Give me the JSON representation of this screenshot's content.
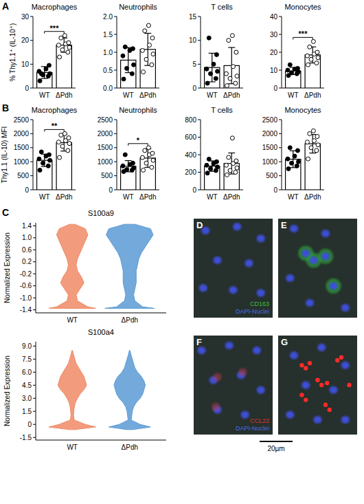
{
  "chart_data": [
    {
      "type": "bar",
      "title": "Macrophages",
      "y_label": "% Thy1.1⁺ (IL-10⁺)",
      "categories": [
        "WT",
        "ΔPdh"
      ],
      "values": [
        6.5,
        18
      ],
      "errors": [
        2.5,
        3
      ],
      "points": [
        [
          3,
          5,
          5.5,
          6,
          7,
          8,
          9.5,
          6
        ],
        [
          13,
          15,
          16,
          17,
          18,
          18.5,
          19,
          21,
          22
        ]
      ],
      "colors": [
        "#ffffff",
        "#ffffff"
      ],
      "ylim": [
        0,
        30
      ],
      "yticks": [
        0,
        10,
        20,
        30
      ],
      "significance": "***"
    },
    {
      "type": "bar",
      "title": "Neutrophils",
      "categories": [
        "WT",
        "ΔPdh"
      ],
      "values": [
        0.78,
        1.08
      ],
      "errors": [
        0.35,
        0.45
      ],
      "points": [
        [
          0.25,
          0.4,
          0.55,
          0.65,
          0.9,
          1.05,
          1.1,
          1.15
        ],
        [
          0.45,
          0.65,
          0.8,
          0.95,
          1.05,
          1.2,
          1.4,
          1.6,
          1.75
        ]
      ],
      "colors": [
        "#ffffff",
        "#ffffff"
      ],
      "ylim": [
        0,
        2
      ],
      "yticks": [
        {
          "value": 0,
          "label": "0.0"
        },
        0.5,
        {
          "value": 1,
          "label": "1.0"
        },
        1.5,
        {
          "value": 2,
          "label": "2.0"
        }
      ]
    },
    {
      "type": "bar",
      "title": "T cells",
      "categories": [
        "WT",
        "ΔPdh"
      ],
      "values": [
        4.3,
        4.7
      ],
      "errors": [
        3,
        3.8
      ],
      "points": [
        [
          1,
          2,
          3,
          3.5,
          4,
          5,
          7,
          10.5
        ],
        [
          0.5,
          1,
          2,
          2.5,
          3,
          4.5,
          7.5,
          10,
          11
        ]
      ],
      "colors": [
        "#ffffff",
        "#ffffff"
      ],
      "ylim": [
        0,
        15
      ],
      "yticks": [
        0,
        5,
        10,
        15
      ]
    },
    {
      "type": "bar",
      "title": "Monocytes",
      "categories": [
        "WT",
        "ΔPdh"
      ],
      "values": [
        9.5,
        18.5
      ],
      "errors": [
        2,
        4.5
      ],
      "points": [
        [
          7,
          8,
          8.5,
          9,
          10,
          10.5,
          11,
          13
        ],
        [
          13,
          14,
          16,
          17,
          18,
          19,
          20,
          23,
          26
        ]
      ],
      "colors": [
        "#ffffff",
        "#ffffff"
      ],
      "ylim": [
        0,
        40
      ],
      "yticks": [
        0,
        10,
        20,
        30,
        40
      ],
      "significance": "***"
    },
    {
      "type": "bar",
      "title": "Macrophages",
      "y_label": "Thy1.1 (IL-10) MFI",
      "categories": [
        "WT",
        "ΔPdh"
      ],
      "values": [
        1050,
        1680
      ],
      "errors": [
        220,
        300
      ],
      "points": [
        [
          700,
          850,
          950,
          1050,
          1100,
          1200,
          1250,
          1350
        ],
        [
          1150,
          1400,
          1550,
          1650,
          1700,
          1750,
          1850,
          1950,
          2000
        ]
      ],
      "colors": [
        "#ffffff",
        "#ffffff"
      ],
      "ylim": [
        0,
        2500
      ],
      "yticks": [
        0,
        500,
        1000,
        1500,
        2000,
        2500
      ],
      "significance": "**"
    },
    {
      "type": "bar",
      "title": "Neutrophils",
      "categories": [
        "WT",
        "ΔPdh"
      ],
      "values": [
        840,
        1130
      ],
      "errors": [
        200,
        330
      ],
      "points": [
        [
          650,
          700,
          720,
          780,
          850,
          900,
          950,
          1250
        ],
        [
          700,
          800,
          950,
          1050,
          1150,
          1250,
          1300,
          1400,
          1500
        ]
      ],
      "colors": [
        "#ffffff",
        "#ffffff"
      ],
      "ylim": [
        0,
        2500
      ],
      "yticks": [
        0,
        500,
        1000,
        1500,
        2000,
        2500
      ],
      "significance": "*"
    },
    {
      "type": "bar",
      "title": "T cells",
      "categories": [
        "WT",
        "ΔPdh"
      ],
      "values": [
        270,
        300
      ],
      "errors": [
        60,
        120
      ],
      "points": [
        [
          190,
          220,
          240,
          260,
          280,
          300,
          320,
          350
        ],
        [
          170,
          200,
          220,
          250,
          280,
          300,
          330,
          370,
          590
        ]
      ],
      "colors": [
        "#ffffff",
        "#ffffff"
      ],
      "ylim": [
        0,
        800
      ],
      "yticks": [
        0,
        200,
        400,
        600,
        800
      ]
    },
    {
      "type": "bar",
      "title": "Monocytes",
      "categories": [
        "WT",
        "ΔPdh"
      ],
      "values": [
        1090,
        1640
      ],
      "errors": [
        300,
        330
      ],
      "points": [
        [
          750,
          850,
          950,
          1000,
          1100,
          1200,
          1400,
          1500
        ],
        [
          1100,
          1400,
          1500,
          1600,
          1700,
          1750,
          1900,
          2000,
          2100
        ]
      ],
      "colors": [
        "#ffffff",
        "#ffffff"
      ],
      "ylim": [
        0,
        2500
      ],
      "yticks": [
        0,
        500,
        1000,
        1500,
        2000,
        2500
      ]
    },
    {
      "type": "violin",
      "title": "S100a9",
      "y_label": "Normalized Expression",
      "categories": [
        "WT",
        "ΔPdh"
      ],
      "colors": [
        "#f08a66",
        "#5b9bd5"
      ],
      "y": [
        -1.35,
        -1.3,
        -1.1,
        -0.9,
        -0.7,
        -0.5,
        -0.3,
        -0.1,
        0.1,
        0.3,
        0.5,
        0.7,
        0.9,
        1.1,
        1.3,
        1.45
      ],
      "density": [
        [
          0.9,
          0.6,
          0.2,
          0.15,
          0.3,
          0.45,
          0.35,
          0.2,
          0.15,
          0.2,
          0.3,
          0.4,
          0.5,
          0.6,
          0.5,
          0.1
        ],
        [
          0.95,
          0.5,
          0.2,
          0.15,
          0.2,
          0.25,
          0.25,
          0.25,
          0.3,
          0.35,
          0.45,
          0.6,
          0.75,
          0.9,
          0.8,
          0.2
        ]
      ],
      "ylim": [
        -1.5,
        1.5
      ],
      "yticks": [
        -1.4,
        {
          "value": -1,
          "label": "-1.0"
        },
        -0.6,
        -0.2,
        0.2,
        0.6,
        {
          "value": 1,
          "label": "1.0"
        },
        1.4
      ]
    },
    {
      "type": "violin",
      "title": "S100a4",
      "y_label": "Normalized Expression",
      "categories": [
        "WT",
        "ΔPdh"
      ],
      "colors": [
        "#f08a66",
        "#5b9bd5"
      ],
      "y": [
        -0.6,
        -0.3,
        0,
        0.5,
        1,
        1.5,
        2,
        2.5,
        3,
        3.5,
        4,
        4.5,
        5,
        5.5,
        6,
        6.5,
        7,
        7.5,
        8,
        8.5
      ],
      "density": [
        [
          0.1,
          0.9,
          0.5,
          0.08,
          0.05,
          0.06,
          0.08,
          0.12,
          0.2,
          0.3,
          0.45,
          0.55,
          0.5,
          0.45,
          0.35,
          0.25,
          0.15,
          0.1,
          0.05,
          0.01
        ],
        [
          0.1,
          0.8,
          0.4,
          0.06,
          0.08,
          0.1,
          0.15,
          0.25,
          0.4,
          0.5,
          0.55,
          0.6,
          0.55,
          0.45,
          0.3,
          0.2,
          0.15,
          0.1,
          0.05,
          0.01
        ]
      ],
      "ylim": [
        -1.8,
        9.5
      ],
      "yticks": [
        -1.5,
        0,
        1.5,
        {
          "value": 3,
          "label": "3.0"
        },
        4.5,
        {
          "value": 6,
          "label": "6.0"
        },
        7.5,
        {
          "value": 9,
          "label": "9.0"
        }
      ]
    }
  ],
  "panel_letters": [
    "A",
    "B",
    "C"
  ],
  "images": [
    {
      "letter": "D",
      "labels": [
        {
          "text": "CD163",
          "color": "#3fbf3f"
        },
        {
          "text": "DAPI-Nuclei",
          "color": "#4a6fe0"
        }
      ]
    },
    {
      "letter": "E",
      "labels": []
    },
    {
      "letter": "F",
      "labels": [
        {
          "text": "CCL22",
          "color": "#e03030"
        },
        {
          "text": "DAPI-Nuclei",
          "color": "#4a6fe0"
        }
      ]
    },
    {
      "letter": "G",
      "labels": []
    }
  ],
  "scale_bar": "20µm"
}
